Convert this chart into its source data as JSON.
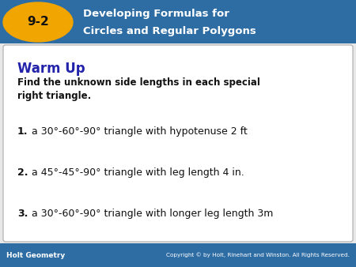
{
  "header_bg_color": "#2E6DA4",
  "header_text_color": "#FFFFFF",
  "badge_bg_color": "#F0A500",
  "badge_text": "9-2",
  "header_line1": "Developing Formulas for",
  "header_line2": "Circles and Regular Polygons",
  "footer_bg_color": "#2E6DA4",
  "footer_left_text": "Holt Geometry",
  "footer_right_text": "Copyright © by Holt, Rinehart and Winston. All Rights Reserved.",
  "footer_text_color": "#FFFFFF",
  "body_bg_color": "#E8E8E8",
  "card_bg_color": "#FFFFFF",
  "card_border_color": "#AAAAAA",
  "warm_up_color": "#2222AA",
  "warm_up_title": "Warm Up",
  "instructions_bold": "Find the unknown side lengths in each special\nright triangle.",
  "problem1_num": "1.",
  "problem1_text": "a 30°-60°-90° triangle with hypotenuse 2 ft",
  "problem2_num": "2.",
  "problem2_text": "a 45°-45°-90° triangle with leg length 4 in.",
  "problem3_num": "3.",
  "problem3_text": "a 30°-60°-90° triangle with longer leg length 3m",
  "text_color": "#111111"
}
